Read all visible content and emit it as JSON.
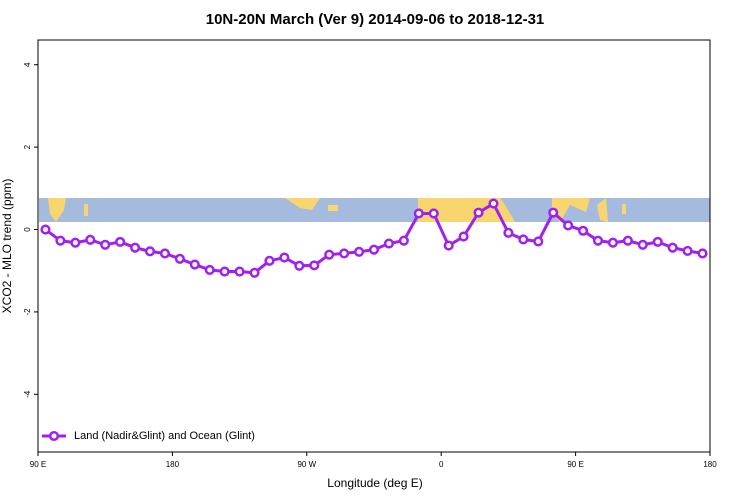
{
  "chart_data": {
    "type": "line",
    "title": "10N-20N March (Ver 9)   2014-09-06 to 2018-12-31",
    "x_label": "Longitude (deg E)",
    "y_label": "XCO2 - MLO trend (ppm)",
    "x": [
      95,
      105,
      115,
      125,
      135,
      145,
      155,
      165,
      175,
      185,
      195,
      205,
      215,
      225,
      235,
      245,
      255,
      265,
      275,
      285,
      295,
      305,
      315,
      325,
      335,
      345,
      355,
      365,
      375,
      385,
      395,
      405,
      415,
      425,
      435,
      445,
      455,
      465,
      475,
      485,
      495,
      505,
      515,
      525,
      535
    ],
    "series": [
      {
        "name": "Land (Nadir&Glint) and Ocean (Glint)",
        "color": "#a020f0",
        "values": [
          0.0,
          -0.27,
          -0.32,
          -0.25,
          -0.37,
          -0.3,
          -0.44,
          -0.53,
          -0.58,
          -0.71,
          -0.85,
          -0.98,
          -1.02,
          -1.02,
          -1.05,
          -0.76,
          -0.68,
          -0.88,
          -0.87,
          -0.61,
          -0.58,
          -0.54,
          -0.49,
          -0.34,
          -0.27,
          0.39,
          0.39,
          -0.39,
          -0.17,
          0.41,
          0.63,
          -0.08,
          -0.24,
          -0.29,
          0.41,
          0.1,
          -0.03,
          -0.27,
          -0.32,
          -0.27,
          -0.37,
          -0.3,
          -0.44,
          -0.52,
          -0.58
        ]
      }
    ],
    "xlim": [
      90,
      540
    ],
    "xticks": [
      {
        "value": 90,
        "label": "90 E"
      },
      {
        "value": 180,
        "label": "180"
      },
      {
        "value": 270,
        "label": "90 W"
      },
      {
        "value": 360,
        "label": "0"
      },
      {
        "value": 450,
        "label": "90 E"
      },
      {
        "value": 540,
        "label": "180"
      }
    ],
    "ylim": [
      -5.4,
      4.6
    ],
    "yticks": [
      -4,
      -2,
      0,
      2,
      4
    ],
    "legend": "bottom-left"
  }
}
